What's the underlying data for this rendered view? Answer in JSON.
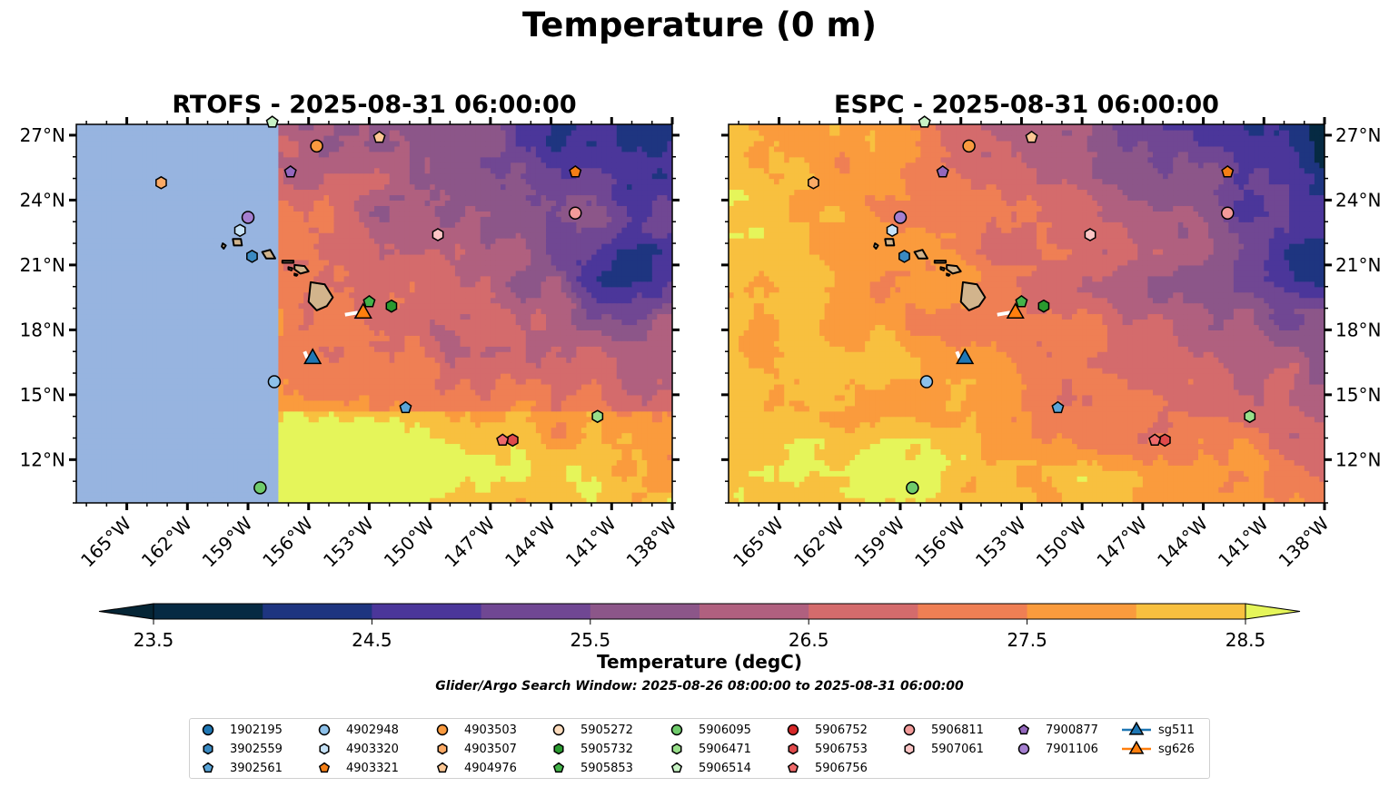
{
  "figure": {
    "suptitle": "Temperature (0 m)",
    "search_window": "Glider/Argo Search Window: 2025-08-26 08:00:00 to 2025-08-31 06:00:00"
  },
  "chart_data": {
    "type": "heatmap",
    "title": "Temperature (0 m)",
    "panels": [
      {
        "id": "left",
        "model": "RTOFS",
        "title": "RTOFS - 2025-08-31 06:00:00",
        "lat_tick_side": "left",
        "no_data_west_of_lon": -157.6
      },
      {
        "id": "right",
        "model": "ESPC",
        "title": "ESPC - 2025-08-31 06:00:00",
        "lat_tick_side": "right"
      }
    ],
    "xlim": [
      -167.5,
      -138
    ],
    "ylim": [
      10,
      27.5
    ],
    "x_ticks": [
      -165,
      -162,
      -159,
      -156,
      -153,
      -150,
      -147,
      -144,
      -141,
      -138
    ],
    "x_tick_labels": [
      "165°W",
      "162°W",
      "159°W",
      "156°W",
      "153°W",
      "150°W",
      "147°W",
      "144°W",
      "141°W",
      "138°W"
    ],
    "y_ticks": [
      12,
      15,
      18,
      21,
      24,
      27
    ],
    "y_tick_labels": [
      "12°N",
      "15°N",
      "18°N",
      "21°N",
      "24°N",
      "27°N"
    ],
    "colorbar": {
      "label": "Temperature (degC)",
      "levels": [
        23.5,
        24.0,
        24.5,
        25.0,
        25.5,
        26.0,
        26.5,
        27.0,
        27.5,
        28.0,
        28.5
      ],
      "tick_values": [
        23.5,
        24.5,
        25.5,
        26.5,
        27.5,
        28.5
      ],
      "tick_labels": [
        "23.5",
        "24.5",
        "25.5",
        "26.5",
        "27.5",
        "28.5"
      ],
      "colors": [
        "#062a43",
        "#1e3580",
        "#4b369a",
        "#704793",
        "#8c5689",
        "#b0607f",
        "#d46b6c",
        "#ef7f54",
        "#fa9b3d",
        "#f8c03f"
      ],
      "under_color": "#052535",
      "over_color": "#e5f55a",
      "extend": "both"
    },
    "field_description": {
      "left": "RTOFS: warm (27.5-28.5+) south of 14N and near Hawaii, cooling to 24-25 NE; cold core (<24) near 139-142W, 19-22N",
      "right": "ESPC: warm (27.5-28.5+) west and south, cooling toward NE, cold core (<24) near 138-141W, 20-22N"
    },
    "land": {
      "name": "Hawaiian Islands",
      "color": "#d2b48c"
    },
    "no_data_color": "#97b4e0",
    "track_color": "#ffffff",
    "floats": [
      {
        "id": "1902195",
        "marker": "circle",
        "color": "#1f77b4",
        "lon": null,
        "lat": null
      },
      {
        "id": "3902559",
        "marker": "hexagon",
        "color": "#3a8ac2",
        "lon": -158.8,
        "lat": 21.4
      },
      {
        "id": "3902561",
        "marker": "pentagon",
        "color": "#5aa5d8",
        "lon": -151.2,
        "lat": 14.4
      },
      {
        "id": "4902948",
        "marker": "circle",
        "color": "#8dc1ea",
        "lon": -157.7,
        "lat": 15.6
      },
      {
        "id": "4903320",
        "marker": "hexagon",
        "color": "#c6e2f7",
        "lon": -159.4,
        "lat": 22.6
      },
      {
        "id": "4903321",
        "marker": "pentagon",
        "color": "#f57f16",
        "lon": -142.8,
        "lat": 25.3
      },
      {
        "id": "4903503",
        "marker": "circle",
        "color": "#f99a3f",
        "lon": -155.6,
        "lat": 26.5
      },
      {
        "id": "4903507",
        "marker": "hexagon",
        "color": "#fbaa66",
        "lon": -163.3,
        "lat": 24.8
      },
      {
        "id": "4904976",
        "marker": "pentagon",
        "color": "#fdc794",
        "lon": -152.5,
        "lat": 26.9
      },
      {
        "id": "5905272",
        "marker": "circle",
        "color": "#fddcbd",
        "lon": null,
        "lat": null
      },
      {
        "id": "5905732",
        "marker": "hexagon",
        "color": "#2a9a2f",
        "lon": -151.9,
        "lat": 19.1
      },
      {
        "id": "5905853",
        "marker": "pentagon",
        "color": "#44b34a",
        "lon": -153.0,
        "lat": 19.3
      },
      {
        "id": "5906095",
        "marker": "circle",
        "color": "#6fcb6b",
        "lon": -158.4,
        "lat": 10.7
      },
      {
        "id": "5906471",
        "marker": "hexagon",
        "color": "#98df8a",
        "lon": -141.7,
        "lat": 14.0
      },
      {
        "id": "5906514",
        "marker": "pentagon",
        "color": "#c7f2c4",
        "lon": -157.8,
        "lat": 27.6
      },
      {
        "id": "5906752",
        "marker": "circle",
        "color": "#d62728",
        "lon": null,
        "lat": null
      },
      {
        "id": "5906753",
        "marker": "hexagon",
        "color": "#e04a4b",
        "lon": -145.9,
        "lat": 12.9
      },
      {
        "id": "5906756",
        "marker": "pentagon",
        "color": "#ef6a6b",
        "lon": -146.4,
        "lat": 12.9
      },
      {
        "id": "5906811",
        "marker": "circle",
        "color": "#f39b9a",
        "lon": -142.8,
        "lat": 23.4
      },
      {
        "id": "5907061",
        "marker": "hexagon",
        "color": "#fcc5c5",
        "lon": -149.6,
        "lat": 22.4
      },
      {
        "id": "7900877",
        "marker": "pentagon",
        "color": "#9467bd",
        "lon": -156.9,
        "lat": 25.3
      },
      {
        "id": "7901106",
        "marker": "circle",
        "color": "#a57fd0",
        "lon": -159.0,
        "lat": 23.2
      }
    ],
    "gliders": [
      {
        "id": "sg511",
        "marker": "triangle",
        "color": "#1f77b4",
        "lon": -155.8,
        "lat": 16.7,
        "track_from": [
          -156.2,
          17.0
        ]
      },
      {
        "id": "sg626",
        "marker": "triangle",
        "color": "#ff7f0e",
        "lon": -153.3,
        "lat": 18.8,
        "track_from": [
          -154.2,
          18.7
        ]
      }
    ]
  },
  "legend": {
    "columns": [
      [
        "1902195",
        "3902559",
        "3902561"
      ],
      [
        "4902948",
        "4903320",
        "4903321"
      ],
      [
        "4903503",
        "4903507",
        "4904976"
      ],
      [
        "5905272",
        "5905732",
        "5905853"
      ],
      [
        "5906095",
        "5906471",
        "5906514"
      ],
      [
        "5906752",
        "5906753",
        "5906756"
      ],
      [
        "5906811",
        "5907061"
      ],
      [
        "7900877",
        "7901106"
      ],
      [
        "sg511",
        "sg626"
      ]
    ]
  }
}
